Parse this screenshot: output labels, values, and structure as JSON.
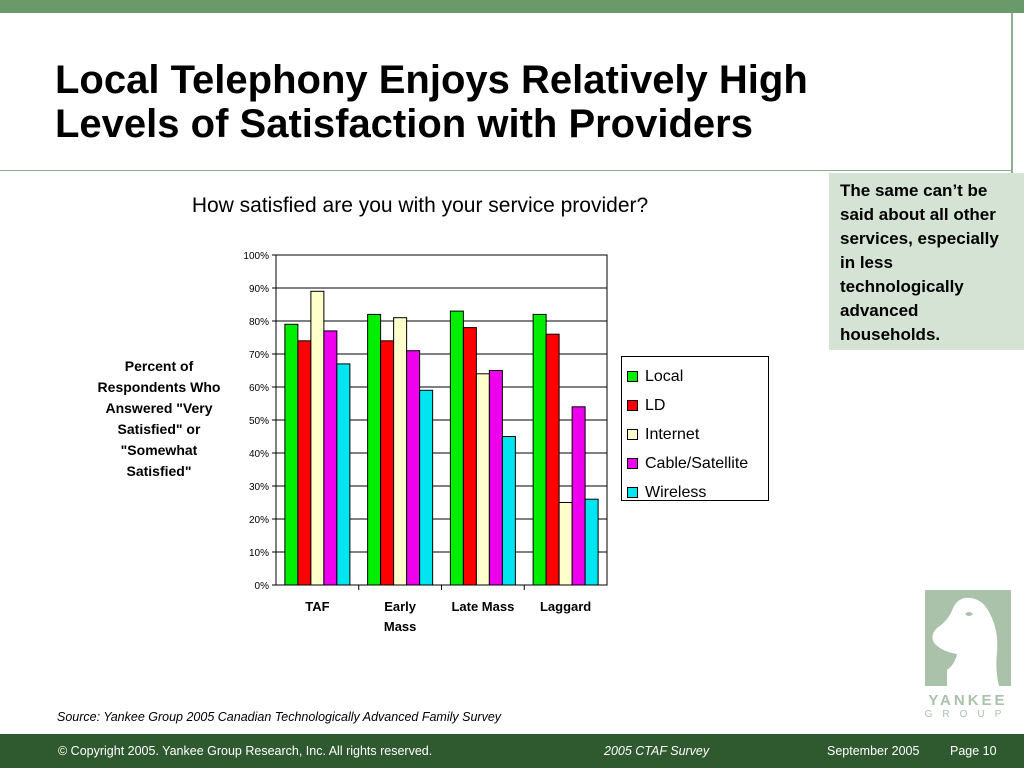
{
  "slide": {
    "title_lines": [
      "Local Telephony Enjoys Relatively High",
      "Levels of Satisfaction with Providers"
    ],
    "callout": "The same can’t be said about all other services, especially in less technologically advanced households.",
    "source": "Source: Yankee Group 2005 Canadian Technologically Advanced Family Survey"
  },
  "footer": {
    "copyright": "© Copyright 2005. Yankee Group Research, Inc.  All rights reserved.",
    "survey": "2005 CTAF Survey",
    "date": "September 2005",
    "page": "Page 10"
  },
  "logo": {
    "word": "YANKEE",
    "sub": "GROUP",
    "icon": "knight-chess-piece-icon"
  },
  "chart_data": {
    "type": "bar",
    "title": "How satisfied are you with your service provider?",
    "ylabel": "Percent of Respondents Who Answered \"Very Satisfied\" or \"Somewhat Satisfied\"",
    "xlabel": "",
    "ylim": [
      0,
      100
    ],
    "y_ticks": [
      "0%",
      "10%",
      "20%",
      "30%",
      "40%",
      "50%",
      "60%",
      "70%",
      "80%",
      "90%",
      "100%"
    ],
    "categories": [
      "TAF",
      "Early Mass",
      "Late Mass",
      "Laggard"
    ],
    "category_label_lines": [
      [
        "TAF"
      ],
      [
        "Early",
        "Mass"
      ],
      [
        "Late Mass"
      ],
      [
        "Laggard"
      ]
    ],
    "grid": true,
    "legend_position": "right",
    "series": [
      {
        "name": "Local",
        "color": "#00ee00",
        "values": [
          79,
          82,
          83,
          82
        ]
      },
      {
        "name": "LD",
        "color": "#ff0000",
        "values": [
          74,
          74,
          78,
          76
        ]
      },
      {
        "name": "Internet",
        "color": "#ffffcc",
        "values": [
          89,
          81,
          64,
          25
        ]
      },
      {
        "name": "Cable/Satellite",
        "color": "#ee00ee",
        "values": [
          77,
          71,
          65,
          54
        ]
      },
      {
        "name": "Wireless",
        "color": "#00e5f0",
        "values": [
          67,
          59,
          45,
          26
        ]
      }
    ]
  }
}
